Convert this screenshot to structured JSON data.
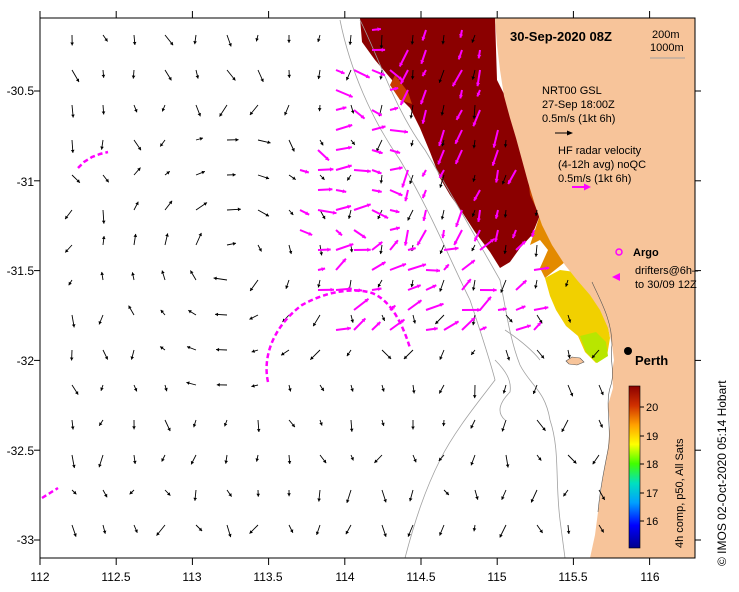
{
  "map": {
    "title": "30-Sep-2020 08Z",
    "extent": {
      "lon_min": 112,
      "lon_max": 116.3,
      "lat_min": -33.1,
      "lat_max": -30.1
    },
    "lon_ticks": [
      "112",
      "112.5",
      "113",
      "113.5",
      "114",
      "114.5",
      "115",
      "115.5",
      "116"
    ],
    "lat_ticks": [
      "-30.5",
      "-31",
      "-31.5",
      "-32",
      "-32.5",
      "-33"
    ],
    "colors": {
      "land": "#f7c49a",
      "ocean": "#ffffff",
      "gsl_arrow": "#000000",
      "radar_arrow": "#ff00ff",
      "isobath": "#a0a0a0"
    }
  },
  "isobaths": {
    "label_200": "200m",
    "label_1000": "1000m"
  },
  "legend": {
    "gsl_source": "NRT00 GSL",
    "gsl_time": "27-Sep 18:00Z",
    "gsl_scale": "0.5m/s (1kt 6h)",
    "radar_title": "HF radar velocity",
    "radar_detail": "(4-12h avg) noQC",
    "radar_scale": "0.5m/s (1kt 6h)",
    "argo_label": "Argo",
    "drifters_label": "drifters@6h–",
    "drifters_range": "to 30/09 12Z"
  },
  "city": {
    "name": "Perth",
    "lon": 115.86,
    "lat": -31.95
  },
  "colorbar": {
    "ticks": [
      "20",
      "19",
      "18",
      "17",
      "16"
    ],
    "label": "4h comp, p50, All Sats"
  },
  "credit": "© IMOS 02-Oct-2020 05:14 Hobart"
}
